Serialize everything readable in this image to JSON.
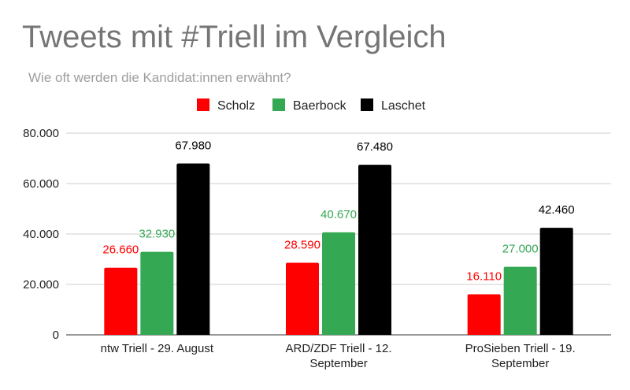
{
  "chart_data": {
    "type": "bar",
    "title": "Tweets mit #Triell im Vergleich",
    "subtitle": "Wie oft werden die Kandidat:innen erwähnt?",
    "categories": [
      [
        "ntw Triell - 29. August"
      ],
      [
        "ARD/ZDF Triell - 12.",
        "September"
      ],
      [
        "ProSieben Triell - 19.",
        "September"
      ]
    ],
    "series": [
      {
        "name": "Scholz",
        "color": "#ff0000",
        "values": [
          26660,
          28590,
          16110
        ],
        "labels": [
          "26.660",
          "28.590",
          "16.110"
        ]
      },
      {
        "name": "Baerbock",
        "color": "#34a853",
        "values": [
          32930,
          40670,
          27000
        ],
        "labels": [
          "32.930",
          "40.670",
          "27.000"
        ]
      },
      {
        "name": "Laschet",
        "color": "#000000",
        "values": [
          67980,
          67480,
          42460
        ],
        "labels": [
          "67.980",
          "67.480",
          "42.460"
        ]
      }
    ],
    "yticks": [
      0,
      20000,
      40000,
      60000,
      80000
    ],
    "ytick_labels": [
      "0",
      "20.000",
      "40.000",
      "60.000",
      "80.000"
    ],
    "ylim": [
      0,
      80000
    ],
    "xlabel": "",
    "ylabel": "",
    "grid": true,
    "legend_position": "top-center"
  }
}
